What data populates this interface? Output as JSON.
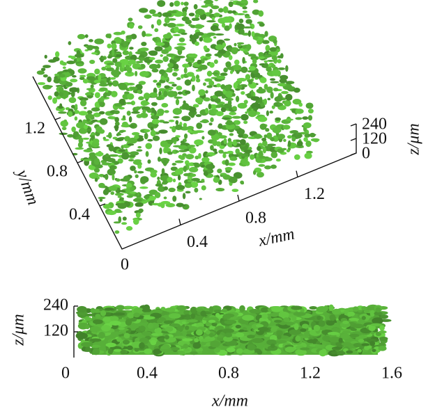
{
  "chart_data": [
    {
      "type": "volume3d",
      "xlabel": "x/mm",
      "ylabel": "y/mm",
      "zlabel": "z/μm",
      "xlim": [
        0,
        1.6
      ],
      "xticks": [
        0.4,
        0.8,
        1.2
      ],
      "ylim": [
        0,
        1.6
      ],
      "yticks": [
        0,
        0.4,
        0.8,
        1.2
      ],
      "zlim": [
        0,
        240
      ],
      "zticks": [
        0,
        120,
        240
      ],
      "color": "#5cb83c"
    },
    {
      "type": "projection",
      "xlabel": "x/mm",
      "ylabel": "z/μm",
      "xlim": [
        0,
        1.6
      ],
      "xticks": [
        0,
        0.4,
        0.8,
        1.2,
        1.6
      ],
      "ylim": [
        0,
        240
      ],
      "yticks": [
        120,
        240
      ],
      "color": "#5cb83c"
    }
  ]
}
